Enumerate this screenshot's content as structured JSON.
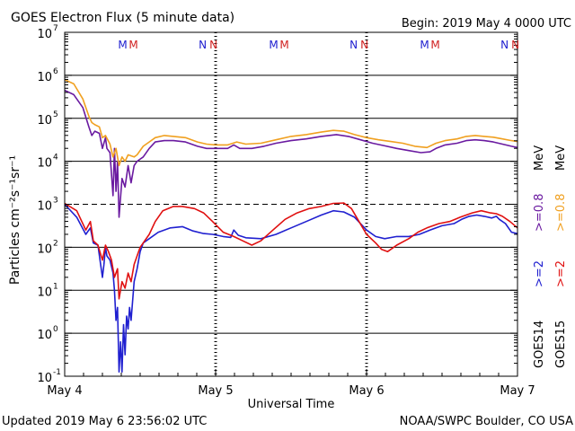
{
  "header": {
    "title": "GOES Electron Flux (5 minute data)",
    "begin": "Begin: 2019 May 4 0000 UTC"
  },
  "footer": {
    "updated": "Updated 2019 May  6 23:56:02 UTC",
    "credit": "NOAA/SWPC Boulder, CO USA"
  },
  "markers": {
    "m": "M",
    "n": "N",
    "m_color_1": "#2020d0",
    "m_color_2": "#d02020",
    "n_color_1": "#2020d0",
    "n_color_2": "#d02020",
    "positions": [
      {
        "type": "M",
        "x": 0.42
      },
      {
        "type": "N",
        "x": 0.95
      },
      {
        "type": "M",
        "x": 1.42
      },
      {
        "type": "N",
        "x": 1.95
      },
      {
        "type": "M",
        "x": 2.42
      },
      {
        "type": "N",
        "x": 2.95
      }
    ]
  },
  "legend": {
    "goes14": "GOES14",
    "goes15": "GOES15",
    "g2": ">=2",
    "g08": ">=0.8",
    "mev": "MeV",
    "colors": {
      "goes14_2": "#2020d0",
      "goes15_2": "#e01010",
      "goes14_08": "#6a1aa0",
      "goes15_08": "#f0a020"
    }
  },
  "chart_data": {
    "type": "line",
    "title": "GOES Electron Flux (5 minute data)",
    "xlabel": "Universal Time",
    "ylabel": "Particles cm⁻²s⁻¹sr⁻¹",
    "y_scale": "log",
    "ylim_exp": [
      -1,
      7
    ],
    "y_tick_exps": [
      -1,
      0,
      1,
      2,
      3,
      4,
      5,
      6,
      7
    ],
    "y_tick_labels": [
      "10",
      "10",
      "10",
      "10",
      "10",
      "10",
      "10",
      "10",
      "10"
    ],
    "y_tick_sups": [
      "-1",
      "0",
      "1",
      "2",
      "3",
      "4",
      "5",
      "6",
      "7"
    ],
    "x_unit": "days from 2019-05-04 00:00 UTC",
    "xlim": [
      0,
      3
    ],
    "x_ticks": [
      0,
      1,
      2,
      3
    ],
    "x_tick_labels": [
      "May 4",
      "May 5",
      "May 6",
      "May 7"
    ],
    "threshold_exp": 3,
    "series": [
      {
        "name": "GOES14 >=2 MeV",
        "color": "#2020d0",
        "points": [
          [
            0.0,
            3.0
          ],
          [
            0.08,
            2.7
          ],
          [
            0.14,
            2.3
          ],
          [
            0.17,
            2.45
          ],
          [
            0.19,
            2.1
          ],
          [
            0.22,
            2.05
          ],
          [
            0.25,
            1.3
          ],
          [
            0.26,
            1.6
          ],
          [
            0.27,
            2.0
          ],
          [
            0.28,
            1.8
          ],
          [
            0.3,
            1.7
          ],
          [
            0.32,
            1.4
          ],
          [
            0.33,
            1.0
          ],
          [
            0.34,
            0.3
          ],
          [
            0.35,
            0.6
          ],
          [
            0.36,
            -0.9
          ],
          [
            0.37,
            -0.2
          ],
          [
            0.38,
            -0.9
          ],
          [
            0.39,
            0.2
          ],
          [
            0.4,
            -0.5
          ],
          [
            0.41,
            0.4
          ],
          [
            0.42,
            0.1
          ],
          [
            0.43,
            0.6
          ],
          [
            0.44,
            0.3
          ],
          [
            0.46,
            1.2
          ],
          [
            0.48,
            1.5
          ],
          [
            0.5,
            1.9
          ],
          [
            0.52,
            2.1
          ],
          [
            0.56,
            2.2
          ],
          [
            0.62,
            2.35
          ],
          [
            0.7,
            2.45
          ],
          [
            0.78,
            2.48
          ],
          [
            0.85,
            2.38
          ],
          [
            0.92,
            2.32
          ],
          [
            0.98,
            2.3
          ],
          [
            1.05,
            2.25
          ],
          [
            1.1,
            2.23
          ],
          [
            1.12,
            2.4
          ],
          [
            1.15,
            2.28
          ],
          [
            1.2,
            2.22
          ],
          [
            1.3,
            2.2
          ],
          [
            1.4,
            2.3
          ],
          [
            1.5,
            2.45
          ],
          [
            1.6,
            2.6
          ],
          [
            1.7,
            2.75
          ],
          [
            1.78,
            2.85
          ],
          [
            1.85,
            2.82
          ],
          [
            1.92,
            2.7
          ],
          [
            2.0,
            2.4
          ],
          [
            2.06,
            2.25
          ],
          [
            2.12,
            2.2
          ],
          [
            2.2,
            2.25
          ],
          [
            2.28,
            2.25
          ],
          [
            2.35,
            2.3
          ],
          [
            2.42,
            2.4
          ],
          [
            2.5,
            2.5
          ],
          [
            2.58,
            2.55
          ],
          [
            2.63,
            2.65
          ],
          [
            2.68,
            2.72
          ],
          [
            2.73,
            2.75
          ],
          [
            2.78,
            2.72
          ],
          [
            2.83,
            2.68
          ],
          [
            2.86,
            2.72
          ],
          [
            2.88,
            2.65
          ],
          [
            2.92,
            2.55
          ],
          [
            2.96,
            2.35
          ],
          [
            3.0,
            2.32
          ]
        ]
      },
      {
        "name": "GOES15 >=2 MeV",
        "color": "#e01010",
        "points": [
          [
            0.0,
            3.02
          ],
          [
            0.08,
            2.85
          ],
          [
            0.14,
            2.4
          ],
          [
            0.17,
            2.6
          ],
          [
            0.19,
            2.15
          ],
          [
            0.22,
            2.05
          ],
          [
            0.25,
            1.7
          ],
          [
            0.27,
            2.05
          ],
          [
            0.29,
            1.9
          ],
          [
            0.31,
            1.7
          ],
          [
            0.33,
            1.3
          ],
          [
            0.35,
            1.5
          ],
          [
            0.36,
            0.8
          ],
          [
            0.38,
            1.2
          ],
          [
            0.4,
            1.05
          ],
          [
            0.42,
            1.4
          ],
          [
            0.44,
            1.2
          ],
          [
            0.46,
            1.6
          ],
          [
            0.48,
            1.8
          ],
          [
            0.5,
            2.0
          ],
          [
            0.52,
            2.1
          ],
          [
            0.56,
            2.3
          ],
          [
            0.6,
            2.6
          ],
          [
            0.65,
            2.85
          ],
          [
            0.72,
            2.95
          ],
          [
            0.78,
            2.95
          ],
          [
            0.86,
            2.9
          ],
          [
            0.92,
            2.8
          ],
          [
            0.98,
            2.6
          ],
          [
            1.05,
            2.35
          ],
          [
            1.12,
            2.25
          ],
          [
            1.18,
            2.15
          ],
          [
            1.24,
            2.05
          ],
          [
            1.3,
            2.15
          ],
          [
            1.38,
            2.4
          ],
          [
            1.46,
            2.65
          ],
          [
            1.54,
            2.8
          ],
          [
            1.62,
            2.9
          ],
          [
            1.7,
            2.95
          ],
          [
            1.78,
            3.02
          ],
          [
            1.85,
            3.03
          ],
          [
            1.9,
            2.9
          ],
          [
            1.95,
            2.6
          ],
          [
            2.0,
            2.3
          ],
          [
            2.06,
            2.1
          ],
          [
            2.1,
            1.95
          ],
          [
            2.14,
            1.9
          ],
          [
            2.2,
            2.05
          ],
          [
            2.28,
            2.2
          ],
          [
            2.34,
            2.35
          ],
          [
            2.4,
            2.45
          ],
          [
            2.48,
            2.55
          ],
          [
            2.55,
            2.6
          ],
          [
            2.62,
            2.7
          ],
          [
            2.7,
            2.8
          ],
          [
            2.76,
            2.85
          ],
          [
            2.82,
            2.8
          ],
          [
            2.86,
            2.78
          ],
          [
            2.9,
            2.72
          ],
          [
            2.95,
            2.6
          ],
          [
            3.0,
            2.45
          ]
        ]
      },
      {
        "name": "GOES14 >=0.8 MeV",
        "color": "#6a1aa0",
        "points": [
          [
            0.0,
            5.65
          ],
          [
            0.06,
            5.55
          ],
          [
            0.12,
            5.25
          ],
          [
            0.16,
            4.8
          ],
          [
            0.18,
            4.6
          ],
          [
            0.2,
            4.7
          ],
          [
            0.23,
            4.65
          ],
          [
            0.25,
            4.3
          ],
          [
            0.27,
            4.55
          ],
          [
            0.28,
            4.3
          ],
          [
            0.3,
            4.2
          ],
          [
            0.32,
            3.2
          ],
          [
            0.33,
            4.3
          ],
          [
            0.34,
            3.3
          ],
          [
            0.35,
            4.0
          ],
          [
            0.36,
            2.7
          ],
          [
            0.38,
            3.6
          ],
          [
            0.4,
            3.4
          ],
          [
            0.42,
            3.9
          ],
          [
            0.44,
            3.5
          ],
          [
            0.46,
            3.9
          ],
          [
            0.48,
            4.0
          ],
          [
            0.52,
            4.1
          ],
          [
            0.56,
            4.3
          ],
          [
            0.6,
            4.45
          ],
          [
            0.66,
            4.48
          ],
          [
            0.72,
            4.48
          ],
          [
            0.8,
            4.45
          ],
          [
            0.88,
            4.35
          ],
          [
            0.94,
            4.3
          ],
          [
            1.0,
            4.3
          ],
          [
            1.08,
            4.3
          ],
          [
            1.12,
            4.38
          ],
          [
            1.16,
            4.3
          ],
          [
            1.24,
            4.3
          ],
          [
            1.32,
            4.35
          ],
          [
            1.4,
            4.42
          ],
          [
            1.5,
            4.48
          ],
          [
            1.6,
            4.52
          ],
          [
            1.7,
            4.58
          ],
          [
            1.8,
            4.62
          ],
          [
            1.88,
            4.58
          ],
          [
            1.96,
            4.5
          ],
          [
            2.04,
            4.42
          ],
          [
            2.12,
            4.36
          ],
          [
            2.2,
            4.3
          ],
          [
            2.28,
            4.25
          ],
          [
            2.36,
            4.2
          ],
          [
            2.42,
            4.22
          ],
          [
            2.46,
            4.3
          ],
          [
            2.52,
            4.38
          ],
          [
            2.6,
            4.42
          ],
          [
            2.66,
            4.48
          ],
          [
            2.72,
            4.5
          ],
          [
            2.78,
            4.48
          ],
          [
            2.84,
            4.45
          ],
          [
            2.9,
            4.4
          ],
          [
            2.96,
            4.35
          ],
          [
            3.0,
            4.32
          ]
        ]
      },
      {
        "name": "GOES15 >=0.8 MeV",
        "color": "#f0a020",
        "points": [
          [
            0.0,
            5.9
          ],
          [
            0.06,
            5.8
          ],
          [
            0.12,
            5.45
          ],
          [
            0.16,
            5.05
          ],
          [
            0.18,
            4.9
          ],
          [
            0.2,
            4.85
          ],
          [
            0.23,
            4.8
          ],
          [
            0.25,
            4.55
          ],
          [
            0.27,
            4.6
          ],
          [
            0.3,
            4.4
          ],
          [
            0.32,
            4.1
          ],
          [
            0.34,
            4.3
          ],
          [
            0.36,
            3.9
          ],
          [
            0.38,
            4.1
          ],
          [
            0.4,
            4.0
          ],
          [
            0.42,
            4.15
          ],
          [
            0.46,
            4.1
          ],
          [
            0.48,
            4.15
          ],
          [
            0.52,
            4.35
          ],
          [
            0.56,
            4.45
          ],
          [
            0.6,
            4.55
          ],
          [
            0.66,
            4.6
          ],
          [
            0.72,
            4.58
          ],
          [
            0.8,
            4.55
          ],
          [
            0.88,
            4.45
          ],
          [
            0.94,
            4.4
          ],
          [
            1.0,
            4.38
          ],
          [
            1.08,
            4.38
          ],
          [
            1.14,
            4.45
          ],
          [
            1.2,
            4.4
          ],
          [
            1.3,
            4.42
          ],
          [
            1.4,
            4.5
          ],
          [
            1.5,
            4.58
          ],
          [
            1.6,
            4.62
          ],
          [
            1.7,
            4.68
          ],
          [
            1.78,
            4.72
          ],
          [
            1.85,
            4.7
          ],
          [
            1.92,
            4.62
          ],
          [
            2.0,
            4.55
          ],
          [
            2.08,
            4.5
          ],
          [
            2.16,
            4.46
          ],
          [
            2.24,
            4.42
          ],
          [
            2.32,
            4.35
          ],
          [
            2.4,
            4.32
          ],
          [
            2.46,
            4.42
          ],
          [
            2.52,
            4.48
          ],
          [
            2.6,
            4.52
          ],
          [
            2.66,
            4.58
          ],
          [
            2.72,
            4.6
          ],
          [
            2.78,
            4.58
          ],
          [
            2.84,
            4.56
          ],
          [
            2.9,
            4.52
          ],
          [
            2.96,
            4.48
          ],
          [
            3.0,
            4.46
          ]
        ]
      }
    ]
  }
}
